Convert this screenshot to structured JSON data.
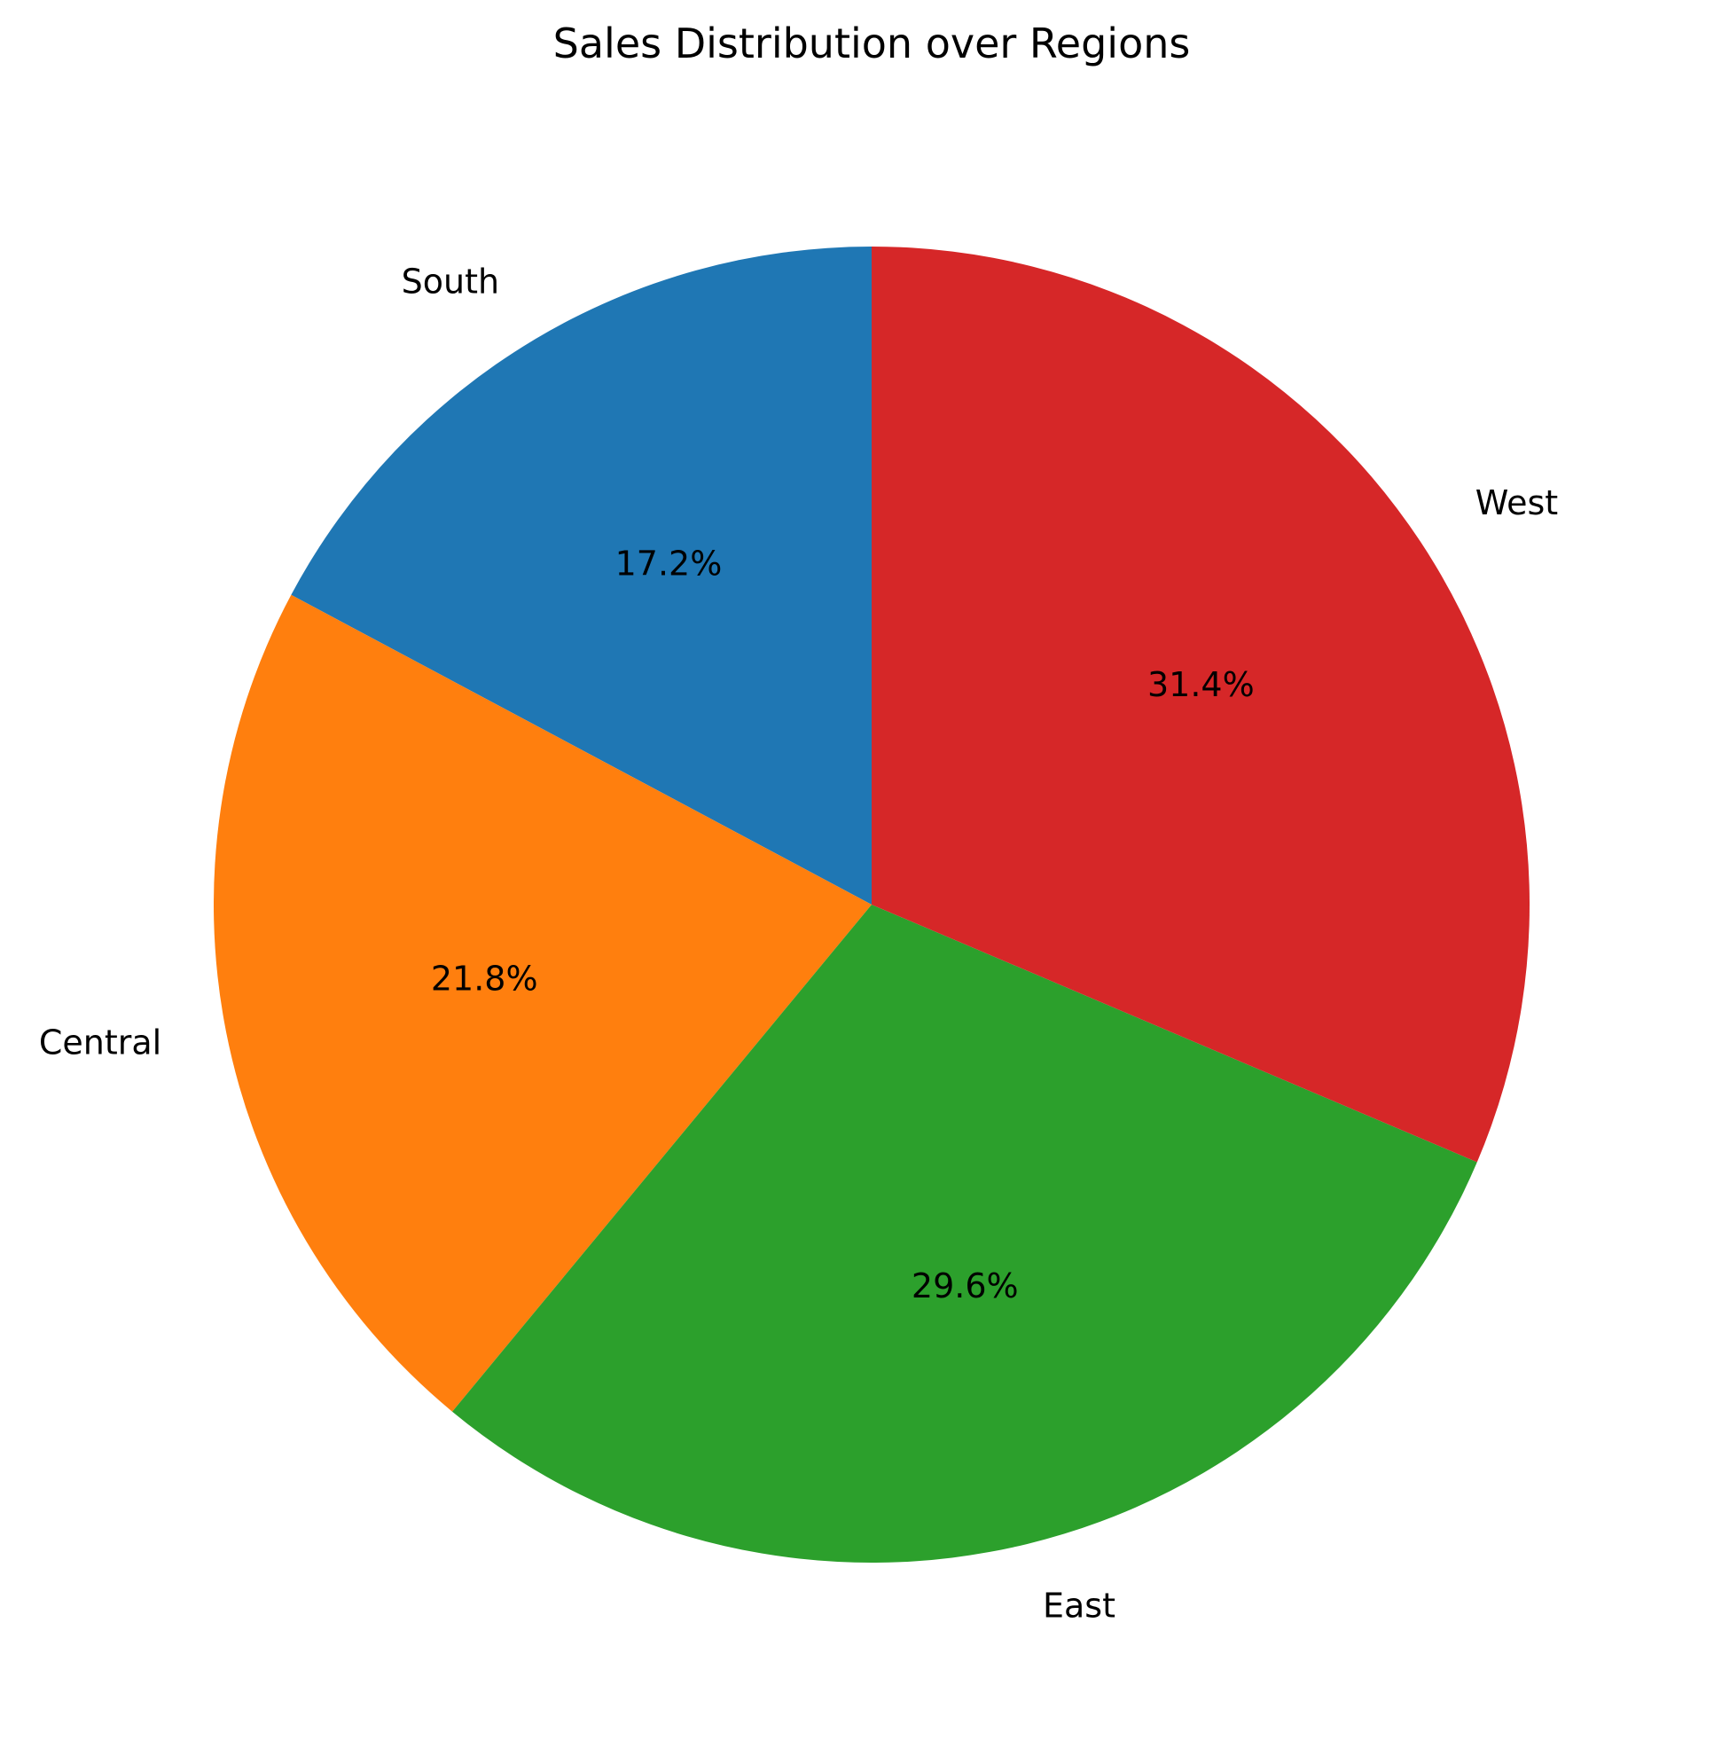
{
  "chart_data": {
    "type": "pie",
    "title": "Sales Distribution over Regions",
    "start_angle_deg": 90,
    "direction": "counterclockwise",
    "slices": [
      {
        "label": "South",
        "value": 17.2,
        "pct_text": "17.2%",
        "color": "#1f77b4"
      },
      {
        "label": "Central",
        "value": 21.8,
        "pct_text": "21.8%",
        "color": "#ff7f0e"
      },
      {
        "label": "East",
        "value": 29.6,
        "pct_text": "29.6%",
        "color": "#2ca02c"
      },
      {
        "label": "West",
        "value": 31.4,
        "pct_text": "31.4%",
        "color": "#d62728"
      }
    ]
  }
}
